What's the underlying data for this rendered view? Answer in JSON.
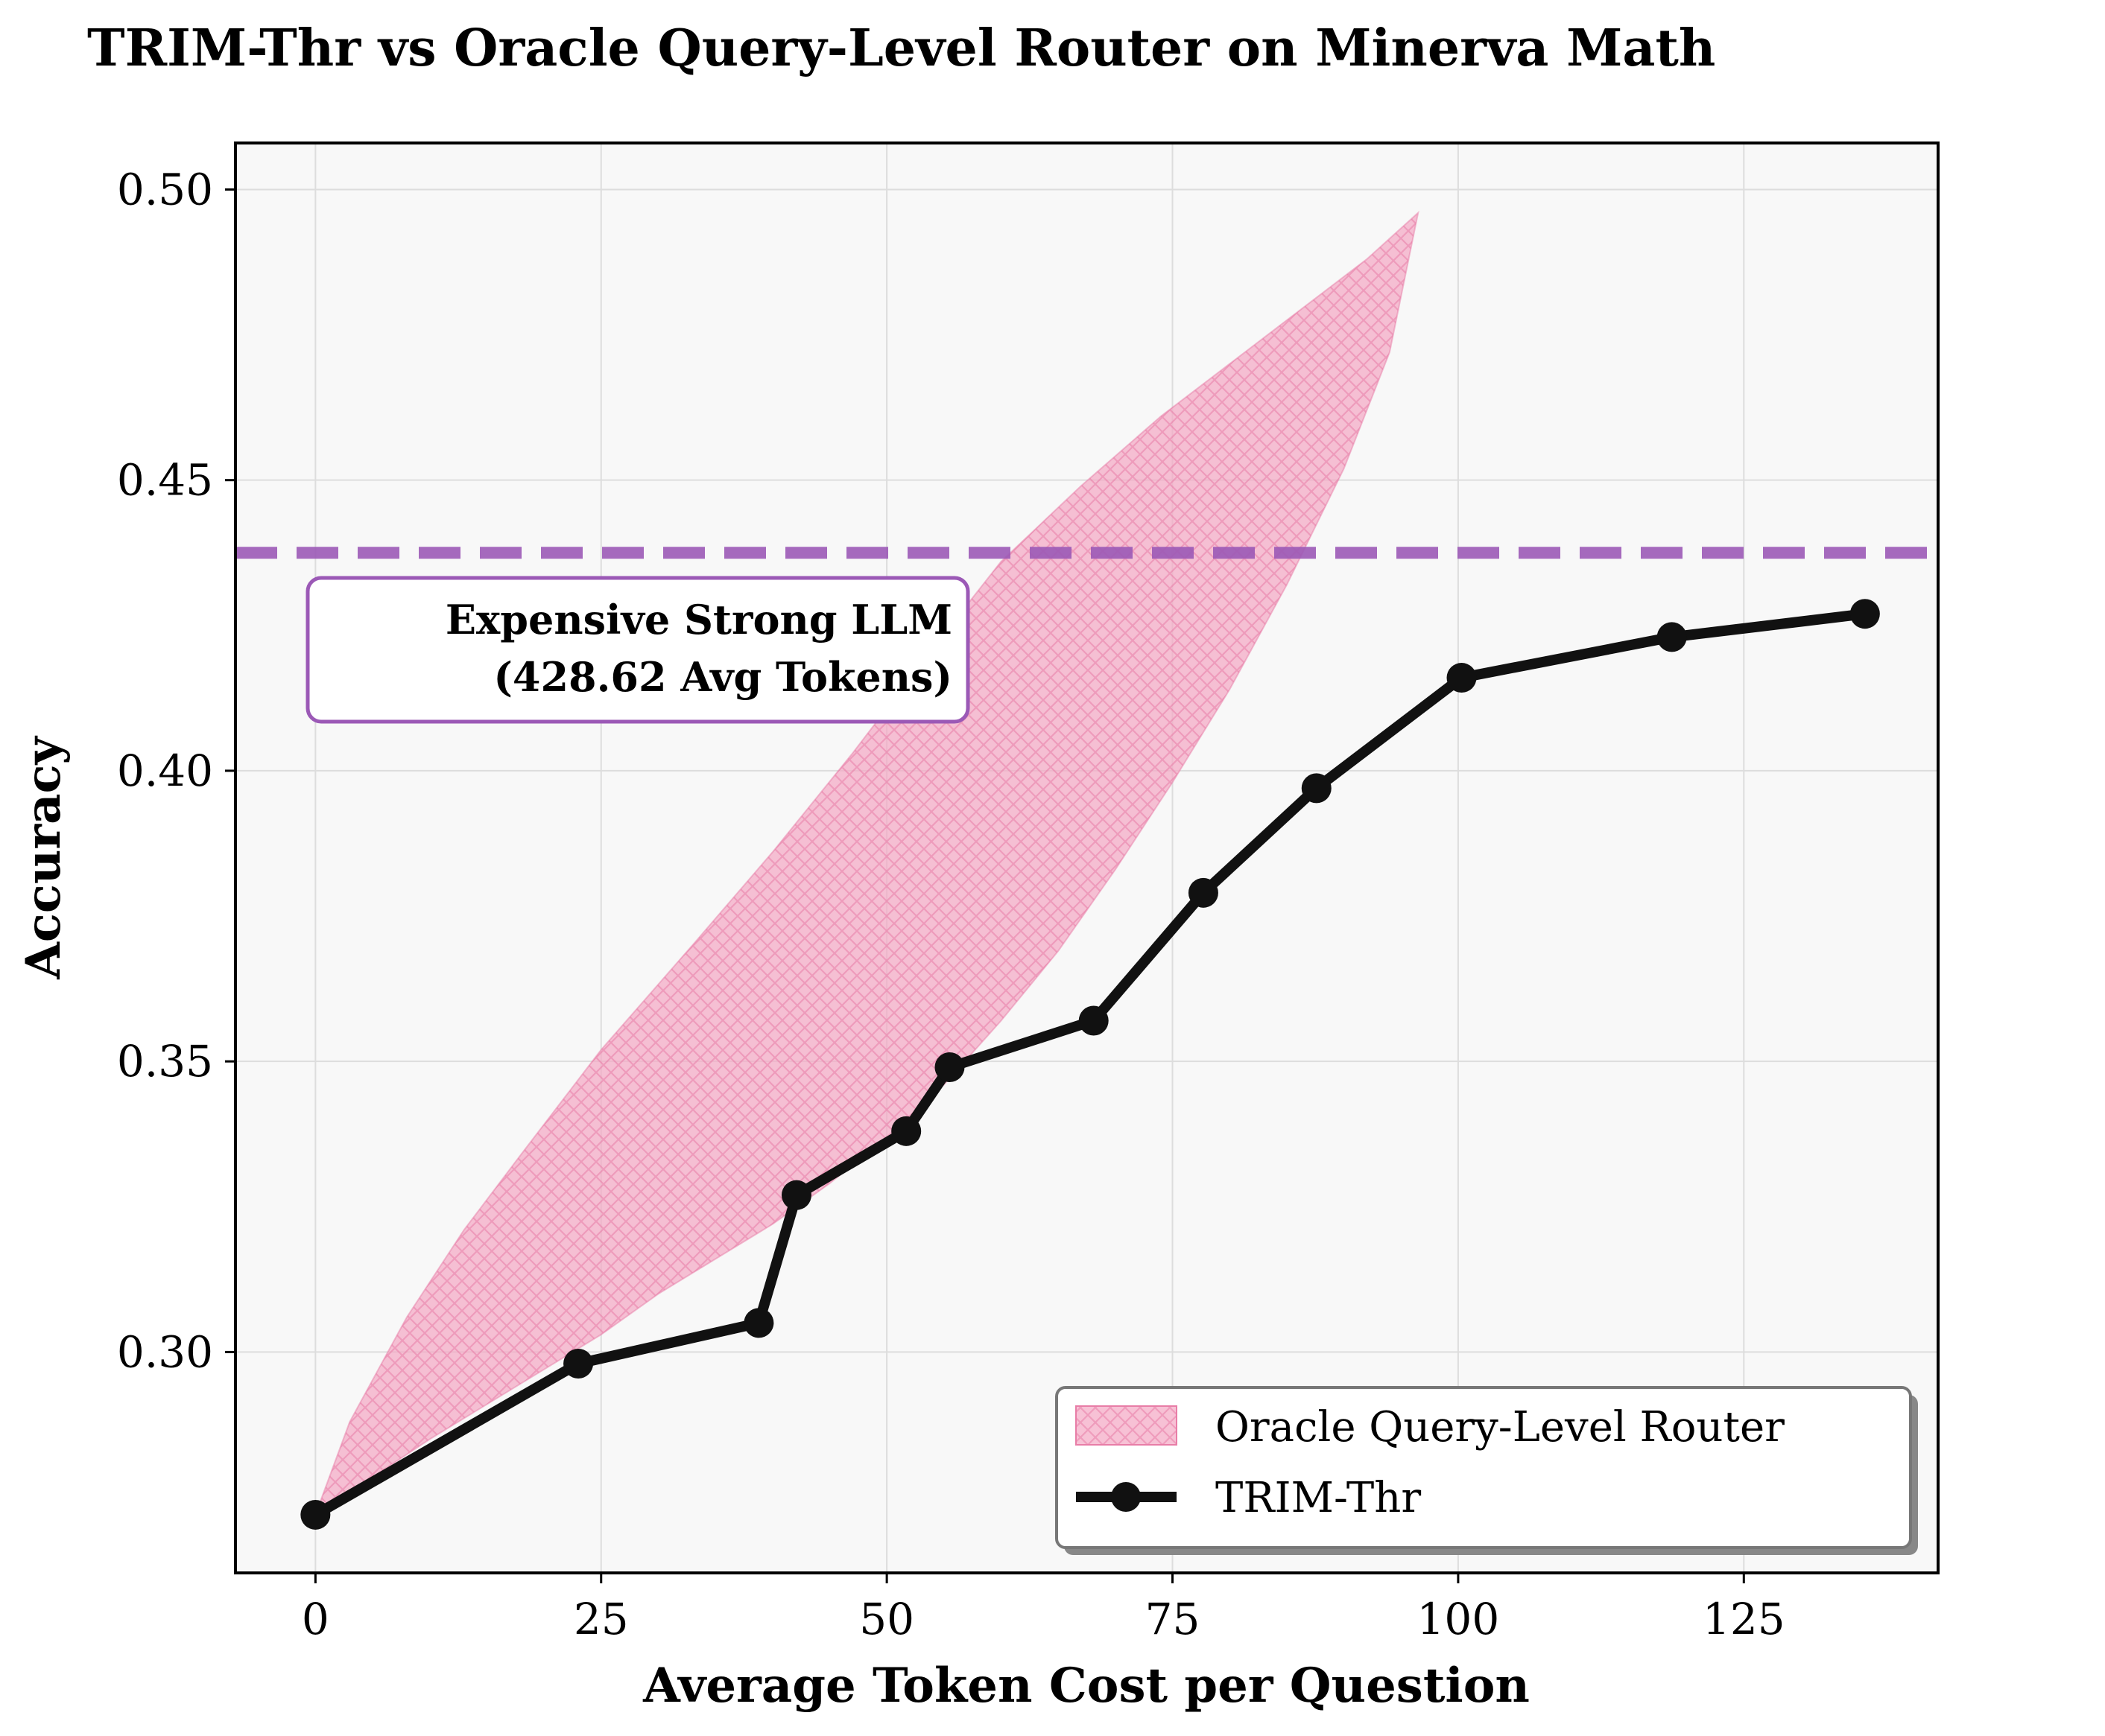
{
  "chart_data": {
    "type": "line",
    "title": "TRIM-Thr vs Oracle Query-Level Router on Minerva Math",
    "xlabel": "Average Token Cost per Question",
    "ylabel": "Accuracy",
    "xlim": [
      -7,
      142
    ],
    "ylim": [
      0.262,
      0.508
    ],
    "xticks": [
      0,
      25,
      50,
      75,
      100,
      125
    ],
    "xtick_labels": [
      "0",
      "25",
      "50",
      "75",
      "100",
      "125"
    ],
    "yticks": [
      0.3,
      0.35,
      0.4,
      0.45,
      0.5
    ],
    "ytick_labels": [
      "0.30",
      "0.35",
      "0.40",
      "0.45",
      "0.50"
    ],
    "grid": true,
    "legend_position": "bottom-right",
    "series": [
      {
        "name": "TRIM-Thr",
        "color": "#111111",
        "marker": "circle",
        "x": [
          0,
          23,
          38.8,
          42.1,
          51.7,
          55.5,
          68.1,
          77.7,
          87.6,
          100.3,
          118.7,
          135.6
        ],
        "y": [
          0.272,
          0.298,
          0.305,
          0.327,
          0.338,
          0.349,
          0.357,
          0.379,
          0.397,
          0.416,
          0.423,
          0.427
        ]
      }
    ],
    "band": {
      "name": "Oracle Query-Level Router",
      "color": "#f3a6c3",
      "edge_color": "#e87da7",
      "hatch": "crosshatch",
      "upper": {
        "x": [
          0,
          3,
          8,
          13,
          18,
          25,
          33,
          40,
          47,
          54,
          60,
          67,
          74,
          80,
          86,
          92,
          96.5
        ],
        "y": [
          0.272,
          0.288,
          0.306,
          0.321,
          0.334,
          0.352,
          0.37,
          0.386,
          0.403,
          0.421,
          0.436,
          0.449,
          0.461,
          0.47,
          0.479,
          0.488,
          0.496
        ]
      },
      "lower": {
        "x": [
          0,
          10,
          20,
          25,
          30,
          35,
          40,
          45,
          50,
          55,
          60,
          65,
          70,
          75,
          80,
          85,
          90,
          94,
          96.5
        ],
        "y": [
          0.272,
          0.285,
          0.297,
          0.303,
          0.31,
          0.316,
          0.322,
          0.329,
          0.337,
          0.346,
          0.357,
          0.369,
          0.383,
          0.398,
          0.414,
          0.432,
          0.452,
          0.472,
          0.496
        ]
      }
    },
    "reference_line": {
      "y": 0.4375,
      "color": "#9b59b6",
      "style": "dashed",
      "annotation": [
        "Expensive Strong LLM",
        "(428.62 Avg Tokens)"
      ]
    }
  }
}
